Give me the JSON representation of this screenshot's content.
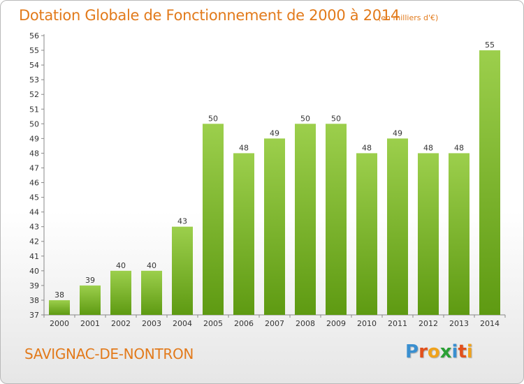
{
  "header": {
    "title": "Dotation Globale de Fonctionnement de 2000 à 2014",
    "subtitle": "(en milliers d'€)"
  },
  "footer": {
    "commune": "SAVIGNAC-DE-NONTRON",
    "logo": {
      "letters": [
        "P",
        "r",
        "o",
        "x",
        "i",
        "t",
        "i"
      ],
      "colors": [
        "#3a8fd0",
        "#e2501b",
        "#f0a21b",
        "#2aa035",
        "#3a8fd0",
        "#e2501b",
        "#f0a21b"
      ]
    }
  },
  "colors": {
    "bar_top": "#9ccf4c",
    "bar_bottom": "#5e9a12",
    "text_accent": "#e27a1b",
    "grid": "#c8c8c8"
  },
  "chart_data": {
    "type": "bar",
    "categories": [
      "2000",
      "2001",
      "2002",
      "2003",
      "2004",
      "2005",
      "2006",
      "2007",
      "2008",
      "2009",
      "2010",
      "2011",
      "2012",
      "2013",
      "2014"
    ],
    "values": [
      38,
      39,
      40,
      40,
      43,
      50,
      48,
      49,
      50,
      50,
      48,
      49,
      48,
      48,
      55
    ],
    "title": "Dotation Globale de Fonctionnement de 2000 à 2014",
    "subtitle": "(en milliers d'€)",
    "ylim": [
      37,
      56
    ],
    "yticks": [
      37,
      38,
      39,
      40,
      41,
      42,
      43,
      44,
      45,
      46,
      47,
      48,
      49,
      50,
      51,
      52,
      53,
      54,
      55,
      56
    ],
    "grid": false
  }
}
